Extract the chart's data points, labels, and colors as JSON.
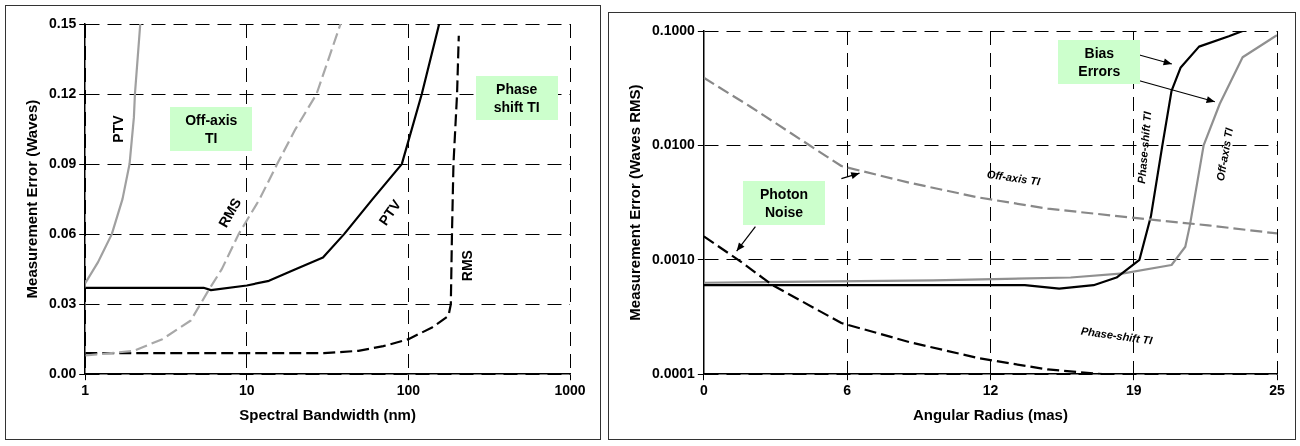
{
  "chart_data": [
    {
      "type": "line",
      "xlabel": "Spectral Bandwidth (nm)",
      "ylabel": "Measurement Error (Waves)",
      "log": "x",
      "xlim": [
        1,
        1000
      ],
      "xticks": [
        1,
        10,
        100,
        1000
      ],
      "ylim": [
        0,
        0.15
      ],
      "yticks": [
        {
          "value": 0,
          "label": "0.00"
        },
        0.03,
        0.06,
        0.09,
        0.12,
        0.15
      ],
      "grid": true,
      "legend": false,
      "marker": "none",
      "annotations": [
        "Off-axis TI",
        "Phase shift TI"
      ],
      "series": [
        {
          "name": "PTV",
          "color": "#a0a0a0",
          "line_style": "solid",
          "x": [
            1,
            1.2,
            1.46,
            1.7,
            1.88,
            2.0,
            2.03,
            2.19
          ],
          "values": [
            0.039,
            0.048,
            0.06,
            0.075,
            0.09,
            0.11,
            0.12,
            0.15
          ]
        },
        {
          "name": "RMS",
          "color": "#a8a8a8",
          "line_style": "dashed",
          "x": [
            1,
            2,
            3,
            4.5,
            5.8,
            7,
            8.9,
            12,
            15.4,
            20,
            27,
            38
          ],
          "values": [
            0.008,
            0.01,
            0.015,
            0.023,
            0.036,
            0.045,
            0.06,
            0.075,
            0.09,
            0.105,
            0.12,
            0.15
          ]
        },
        {
          "name": "PTV",
          "color": "#000000",
          "line_style": "solid",
          "x": [
            1,
            5.4,
            6,
            10,
            13.7,
            20,
            29.6,
            40,
            60,
            91,
            121,
            155
          ],
          "values": [
            0.037,
            0.037,
            0.036,
            0.038,
            0.04,
            0.045,
            0.05,
            0.06,
            0.075,
            0.09,
            0.12,
            0.15
          ]
        },
        {
          "name": "RMS",
          "color": "#000000",
          "line_style": "dashed",
          "x": [
            1,
            30,
            49,
            70,
            100,
            140,
            177,
            183,
            186,
            190,
            200,
            205
          ],
          "values": [
            0.009,
            0.009,
            0.01,
            0.012,
            0.015,
            0.02,
            0.025,
            0.03,
            0.06,
            0.09,
            0.12,
            0.145
          ]
        }
      ]
    },
    {
      "type": "line",
      "xlabel": "Angular Radius (mas)",
      "ylabel": "Measurement Error (Waves RMS)",
      "log": "y",
      "xlim": [
        0,
        25
      ],
      "xticks": [
        0,
        {
          "value": 6.25,
          "label": "6"
        },
        {
          "value": 12.5,
          "label": "12"
        },
        {
          "value": 18.75,
          "label": "19"
        },
        25
      ],
      "ylim": [
        0.0001,
        0.1
      ],
      "yticks": [
        {
          "value": 0.0001,
          "label": "0.0001"
        },
        {
          "value": 0.001,
          "label": "0.0010"
        },
        {
          "value": 0.01,
          "label": "0.0100"
        },
        {
          "value": 0.1,
          "label": "0.1000"
        }
      ],
      "grid": true,
      "legend": false,
      "marker": "none",
      "annotations": [
        {
          "text": "Photon Noise",
          "x": 1.3,
          "y": 0.0011
        },
        "Bias Errors"
      ],
      "series": [
        {
          "name": "Off-axis TI",
          "color": "#888888",
          "line_style": "dashed",
          "x": [
            0,
            2,
            4.3,
            6,
            9,
            12,
            15,
            19,
            22,
            25
          ],
          "values": [
            0.039,
            0.022,
            0.011,
            0.0066,
            0.0047,
            0.0035,
            0.0028,
            0.0023,
            0.002,
            0.0017
          ]
        },
        {
          "name": "Phase-shift TI",
          "color": "#000000",
          "line_style": "dashed",
          "x": [
            0,
            1.5,
            3,
            6,
            9,
            12,
            15,
            17.4
          ],
          "values": [
            0.0016,
            0.001,
            0.0006,
            0.00028,
            0.00019,
            0.000138,
            0.00011,
            0.0001
          ]
        },
        {
          "name": "Phase-shift TI",
          "color": "#000000",
          "line_style": "solid",
          "x": [
            0,
            14,
            15.5,
            17,
            18,
            19,
            19.5,
            20,
            20.4,
            20.8,
            21.6,
            22.9,
            23.5
          ],
          "values": [
            0.0006,
            0.0006,
            0.00056,
            0.0006,
            0.0007,
            0.001,
            0.0024,
            0.01,
            0.03,
            0.048,
            0.073,
            0.09,
            0.1
          ]
        },
        {
          "name": "Off-axis TI",
          "color": "#909090",
          "line_style": "solid",
          "x": [
            0,
            10,
            16,
            18.3,
            20.4,
            21,
            21.2,
            21.8,
            22.5,
            23.5,
            25
          ],
          "values": [
            0.00063,
            0.00066,
            0.0007,
            0.00076,
            0.0009,
            0.0013,
            0.002,
            0.01,
            0.023,
            0.059,
            0.092
          ]
        }
      ]
    }
  ]
}
